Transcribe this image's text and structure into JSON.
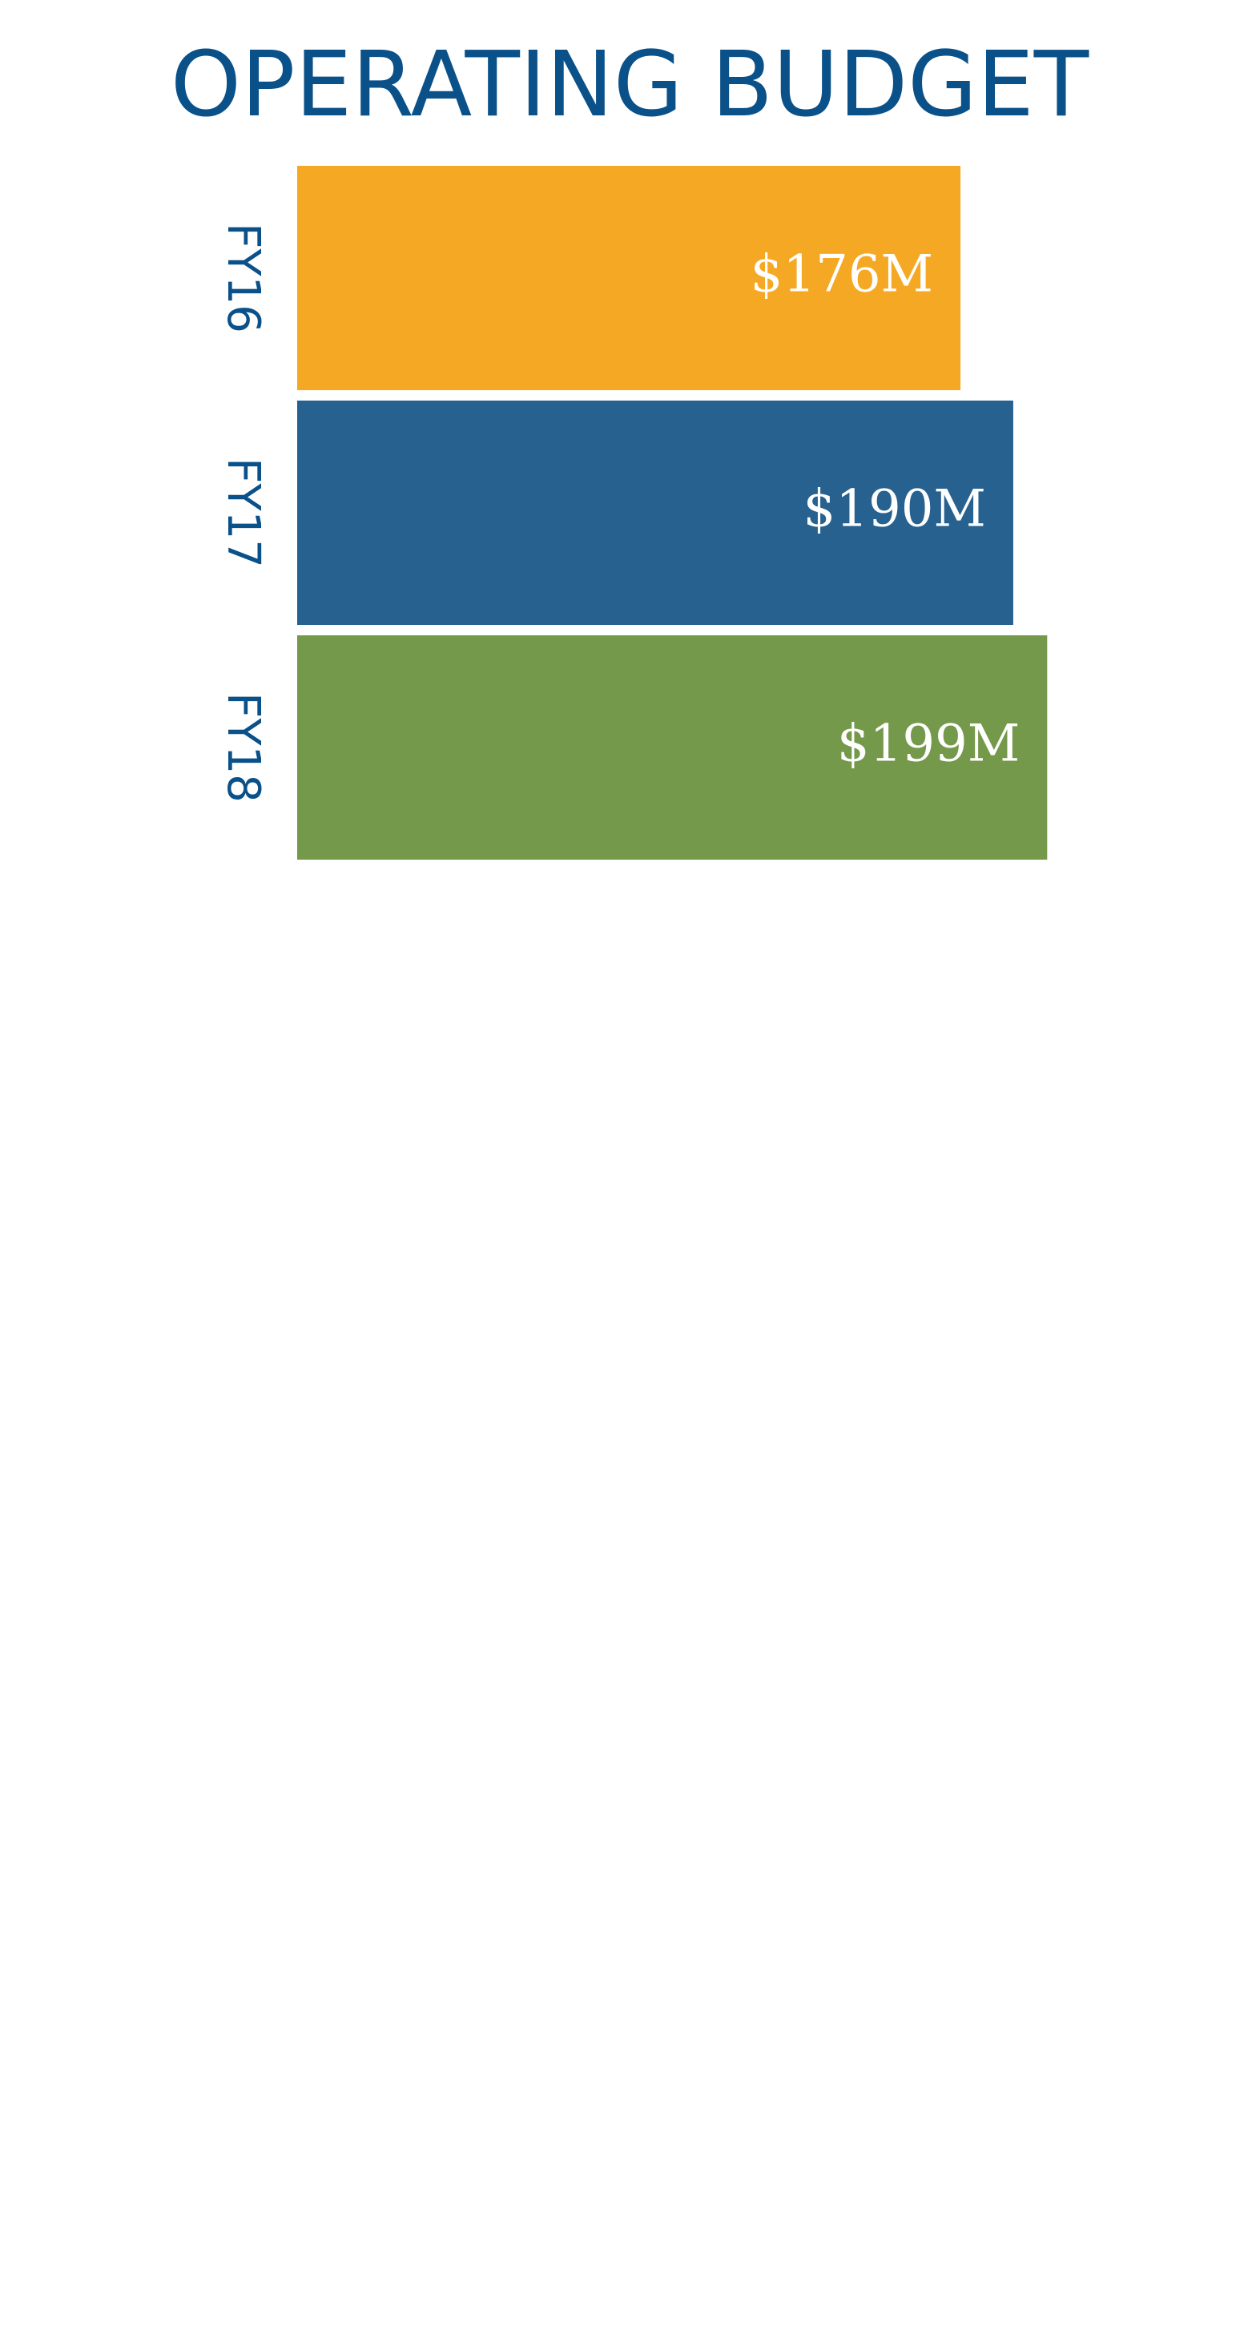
{
  "chart_data": {
    "type": "bar",
    "orientation": "horizontal",
    "title": "OPERATING BUDGET",
    "categories": [
      "FY16",
      "FY17",
      "FY18"
    ],
    "values": [
      176,
      190,
      199
    ],
    "value_labels": [
      "$176M",
      "$190M",
      "$199M"
    ],
    "colors": [
      "#f5a823",
      "#27618f",
      "#74994a"
    ],
    "xlim": [
      0,
      200
    ]
  }
}
